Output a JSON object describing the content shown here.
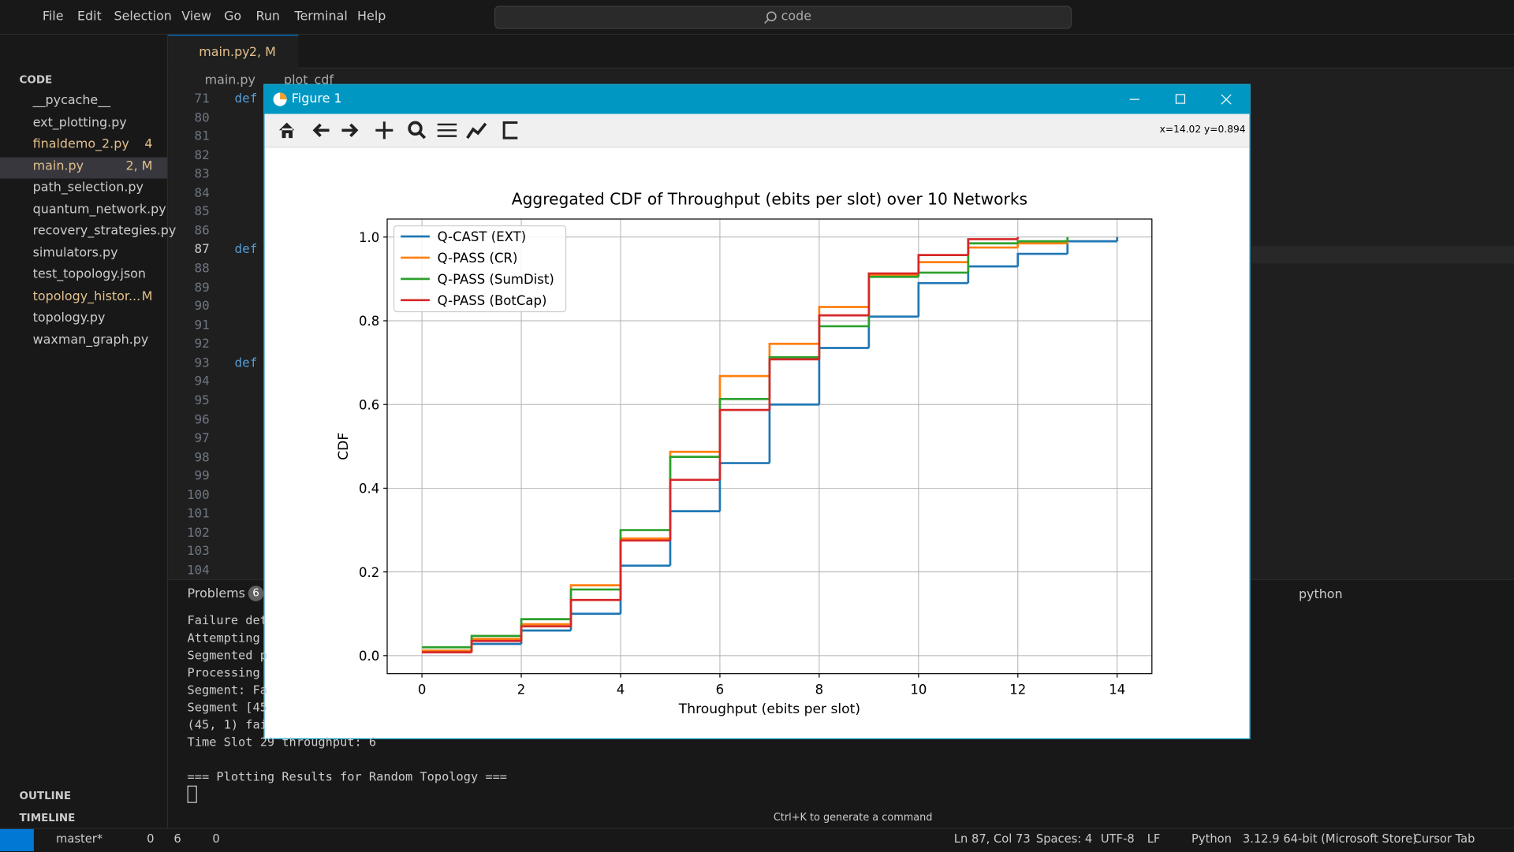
{
  "menu": [
    "File",
    "Edit",
    "Selection",
    "View",
    "Go",
    "Run",
    "Terminal",
    "Help"
  ],
  "search": "code",
  "explorer": {
    "title": "CODE",
    "files": [
      {
        "name": "__pycache__"
      },
      {
        "name": "ext_plotting.py"
      },
      {
        "name": "finaldemo_2.py",
        "badge": "4"
      },
      {
        "name": "main.py",
        "badge": "2, M"
      },
      {
        "name": "path_selection.py"
      },
      {
        "name": "quantum_network.py"
      },
      {
        "name": "recovery_strategies.py"
      },
      {
        "name": "simulators.py"
      },
      {
        "name": "test_topology.json"
      },
      {
        "name": "topology_histor...",
        "badge": "M"
      },
      {
        "name": "topology.py"
      },
      {
        "name": "waxman_graph.py"
      }
    ],
    "outline": "OUTLINE",
    "timeline": "TIMELINE"
  },
  "editor": {
    "tab": "main.py",
    "tab_badge": "2, M",
    "breadcrumb": [
      "main.py",
      "plot_cdf"
    ],
    "lines": [
      {
        "number": 71,
        "code": "def"
      },
      {
        "number": 80
      },
      {
        "number": 81
      },
      {
        "number": 82
      },
      {
        "number": 83
      },
      {
        "number": 84
      },
      {
        "number": 85
      },
      {
        "number": 86
      },
      {
        "number": 87,
        "code": "def"
      },
      {
        "number": 88
      },
      {
        "number": 89
      },
      {
        "number": 90
      },
      {
        "number": 91
      },
      {
        "number": 92
      },
      {
        "number": 93,
        "code": "def"
      },
      {
        "number": 94
      },
      {
        "number": 95
      },
      {
        "number": 96
      },
      {
        "number": 97
      },
      {
        "number": 98
      },
      {
        "number": 99
      },
      {
        "number": 100
      },
      {
        "number": 101
      },
      {
        "number": 102
      },
      {
        "number": 103
      },
      {
        "number": 104
      }
    ]
  },
  "panel": {
    "tab": "Problems",
    "badge": "6",
    "terminal": [
      "Failure det",
      "Attempting ",
      "Segmented p",
      "Processing ",
      "Segment: Fa",
      "Segment [45",
      "(45, 1) fai",
      "Time Slot 29 throughput: 6",
      "=== Plotting Results for Random Topology ==="
    ],
    "shell": "python",
    "hint": "Ctrl+K to generate a command"
  },
  "status": {
    "branch": "master*",
    "errors": "0",
    "warnings": "6",
    "ports": "0",
    "right": [
      "Ln 87, Col 73",
      "Spaces: 4",
      "UTF-8",
      "LF",
      "Python",
      "3.12.9 64-bit (Microsoft Store)",
      "Cursor Tab"
    ]
  },
  "figure": {
    "title": "Figure 1",
    "coords": "x=14.02 y=0.894"
  },
  "chart_data": {
    "type": "step",
    "title": "Aggregated CDF of Throughput (ebits per slot) over 10 Networks",
    "x_label": "Throughput (ebits per slot)",
    "y_label": "CDF",
    "x": [
      0,
      1,
      2,
      3,
      4,
      5,
      6,
      7,
      8,
      9,
      10,
      11,
      12,
      13,
      14
    ],
    "series": [
      {
        "name": "Q-CAST (EXT)",
        "color": "#1f77b4",
        "values": [
          0.008,
          0.028,
          0.06,
          0.1,
          0.215,
          0.345,
          0.46,
          0.6,
          0.735,
          0.81,
          0.89,
          0.93,
          0.96,
          0.99,
          1.0
        ]
      },
      {
        "name": "Q-PASS (CR)",
        "color": "#ff7f0e",
        "values": [
          0.012,
          0.04,
          0.075,
          0.168,
          0.28,
          0.487,
          0.668,
          0.745,
          0.833,
          0.91,
          0.94,
          0.975,
          0.985,
          0.99,
          null
        ]
      },
      {
        "name": "Q-PASS (SumDist)",
        "color": "#2ca02c",
        "values": [
          0.02,
          0.047,
          0.087,
          0.158,
          0.3,
          0.475,
          0.613,
          0.713,
          0.787,
          0.905,
          0.915,
          0.985,
          0.99,
          1.0,
          null
        ]
      },
      {
        "name": "Q-PASS (BotCap)",
        "color": "#d62728",
        "values": [
          0.008,
          0.035,
          0.07,
          0.133,
          0.275,
          0.42,
          0.587,
          0.708,
          0.813,
          0.913,
          0.957,
          0.995,
          1.0,
          null,
          null
        ]
      }
    ],
    "xlim": [
      -0.7,
      14.7
    ],
    "ylim": [
      -0.043,
      1.043
    ],
    "xticks": [
      0,
      2,
      4,
      6,
      8,
      10,
      12,
      14
    ],
    "yticks": [
      {
        "value": 0,
        "label": "0.0"
      },
      {
        "value": 0.2,
        "label": "0.2"
      },
      {
        "value": 0.4,
        "label": "0.4"
      },
      {
        "value": 0.6,
        "label": "0.6"
      },
      {
        "value": 0.8,
        "label": "0.8"
      },
      {
        "value": 1,
        "label": "1.0"
      }
    ],
    "grid": true,
    "legend": "upper left"
  }
}
